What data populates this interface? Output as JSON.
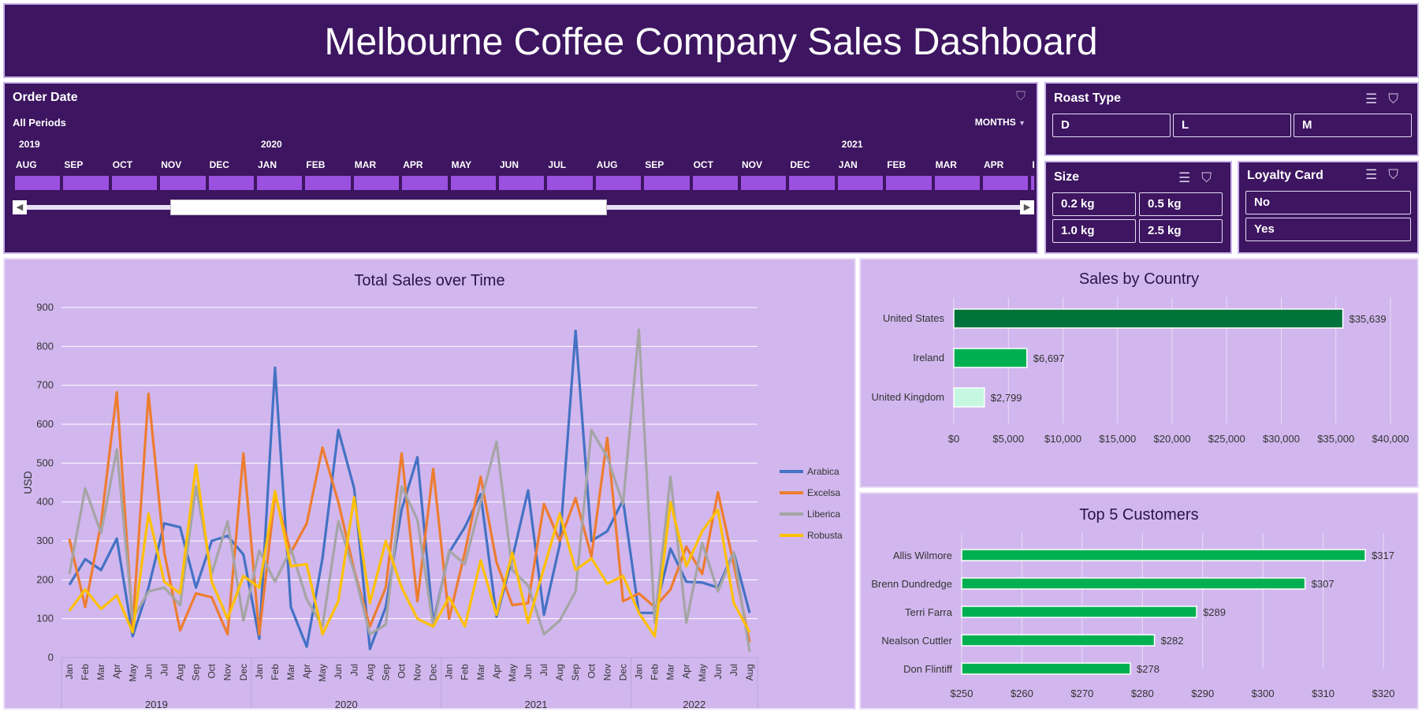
{
  "dashboard_title": "Melbourne Coffee Company Sales Dashboard",
  "timeline": {
    "title": "Order Date",
    "period_label": "All Periods",
    "level_selector": "MONTHS",
    "years": [
      {
        "label": "2019",
        "col": 0
      },
      {
        "label": "2020",
        "col": 5
      },
      {
        "label": "2021",
        "col": 17
      }
    ],
    "months": [
      "AUG",
      "SEP",
      "OCT",
      "NOV",
      "DEC",
      "JAN",
      "FEB",
      "MAR",
      "APR",
      "MAY",
      "JUN",
      "JUL",
      "AUG",
      "SEP",
      "OCT",
      "NOV",
      "DEC",
      "JAN",
      "FEB",
      "MAR",
      "APR",
      "I"
    ]
  },
  "roast_type": {
    "title": "Roast Type",
    "options": [
      "D",
      "L",
      "M"
    ]
  },
  "size": {
    "title": "Size",
    "options": [
      "0.2 kg",
      "0.5 kg",
      "1.0 kg",
      "2.5 kg"
    ]
  },
  "loyalty_card": {
    "title": "Loyalty Card",
    "options": [
      "No",
      "Yes"
    ]
  },
  "colors": {
    "header_bg": "#3d1560",
    "card_bg": "#d1b7ee",
    "arabica": "#4472c4",
    "excelsa": "#ed7d31",
    "liberica": "#a5a5a5",
    "robusta": "#ffc000",
    "us_bar": "#00733a",
    "ireland_bar": "#00b050",
    "uk_bar": "#c6f7e0",
    "customer_bar": "#00b050"
  },
  "chart_data": [
    {
      "type": "line",
      "title": "Total Sales over Time",
      "ylabel": "USD",
      "ylim": [
        0,
        900
      ],
      "yticks": [
        0,
        100,
        200,
        300,
        400,
        500,
        600,
        700,
        800,
        900
      ],
      "grid": true,
      "legend_position": "right",
      "years": [
        "2019",
        "2020",
        "2021",
        "2022"
      ],
      "month_labels": [
        "Jan",
        "Feb",
        "Mar",
        "Apr",
        "May",
        "Jun",
        "Jul",
        "Aug",
        "Sep",
        "Oct",
        "Nov",
        "Dec"
      ],
      "series": [
        {
          "name": "Arabica",
          "values": [
            187,
            253,
            225,
            306,
            55,
            180,
            345,
            335,
            180,
            300,
            313,
            265,
            48,
            745,
            130,
            28,
            255,
            585,
            435,
            22,
            130,
            380,
            515,
            90,
            270,
            335,
            420,
            105,
            255,
            430,
            110,
            290,
            840,
            300,
            325,
            405,
            115,
            115,
            280,
            195,
            193,
            180,
            270,
            115
          ]
        },
        {
          "name": "Excelsa",
          "values": [
            305,
            130,
            345,
            682,
            80,
            678,
            270,
            70,
            165,
            155,
            60,
            525,
            60,
            420,
            270,
            345,
            540,
            400,
            225,
            80,
            180,
            525,
            145,
            485,
            100,
            270,
            465,
            245,
            135,
            140,
            395,
            300,
            410,
            260,
            565,
            145,
            165,
            130,
            175,
            285,
            215,
            425,
            240,
            40
          ]
        },
        {
          "name": "Liberica",
          "values": [
            215,
            435,
            320,
            535,
            100,
            170,
            180,
            135,
            440,
            215,
            350,
            95,
            275,
            195,
            280,
            150,
            80,
            350,
            220,
            60,
            85,
            440,
            355,
            80,
            275,
            240,
            400,
            555,
            225,
            185,
            60,
            95,
            170,
            585,
            515,
            395,
            843,
            90,
            465,
            90,
            295,
            170,
            270,
            15
          ]
        },
        {
          "name": "Robusta",
          "values": [
            120,
            175,
            125,
            160,
            65,
            370,
            195,
            165,
            495,
            195,
            100,
            210,
            180,
            428,
            235,
            240,
            60,
            145,
            412,
            140,
            300,
            180,
            100,
            80,
            155,
            80,
            250,
            110,
            270,
            90,
            230,
            370,
            225,
            255,
            190,
            210,
            115,
            55,
            400,
            235,
            325,
            380,
            140,
            65
          ]
        }
      ]
    },
    {
      "type": "bar",
      "title": "Sales by Country",
      "categories": [
        "United States",
        "Ireland",
        "United Kingdom"
      ],
      "values": [
        35639,
        6697,
        2799
      ],
      "value_labels": [
        "$35,639",
        "$6,697",
        "$2,799"
      ],
      "xlim": [
        0,
        40000
      ],
      "xtick_labels": [
        "$0",
        "$5,000",
        "$10,000",
        "$15,000",
        "$20,000",
        "$25,000",
        "$30,000",
        "$35,000",
        "$40,000"
      ]
    },
    {
      "type": "bar",
      "title": "Top 5 Customers",
      "categories": [
        "Allis Wilmore",
        "Brenn Dundredge",
        "Terri Farra",
        "Nealson Cuttler",
        "Don Flintiff"
      ],
      "values": [
        317,
        307,
        289,
        282,
        278
      ],
      "value_labels": [
        "$317",
        "$307",
        "$289",
        "$282",
        "$278"
      ],
      "xlim": [
        250,
        320
      ],
      "xtick_labels": [
        "$250",
        "$260",
        "$270",
        "$280",
        "$290",
        "$300",
        "$310",
        "$320"
      ]
    }
  ]
}
